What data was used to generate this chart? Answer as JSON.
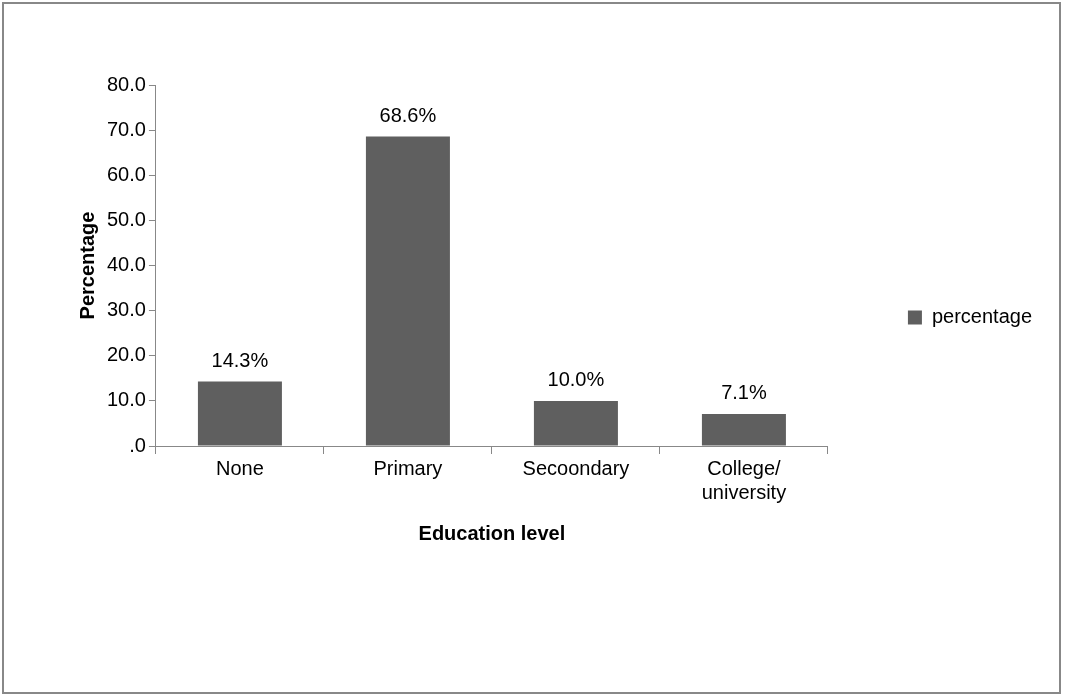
{
  "chart_data": {
    "type": "bar",
    "xlabel": "Education level",
    "ylabel": "Percentage",
    "categories": [
      "None",
      "Primary",
      "Secoondary",
      "College/university"
    ],
    "series": [
      {
        "name": "percentage",
        "color": "#5f5f5f",
        "values": [
          14.3,
          68.6,
          10.0,
          7.1
        ],
        "value_labels": [
          "14.3%",
          "68.6%",
          "10.0%",
          "7.1%"
        ]
      }
    ],
    "ylim": [
      0,
      80
    ],
    "yticks": [
      {
        "value": 0,
        "label": ".0"
      },
      {
        "value": 10,
        "label": "10.0"
      },
      {
        "value": 20,
        "label": "20.0"
      },
      {
        "value": 30,
        "label": "30.0"
      },
      {
        "value": 40,
        "label": "40.0"
      },
      {
        "value": 50,
        "label": "50.0"
      },
      {
        "value": 60,
        "label": "60.0"
      },
      {
        "value": 70,
        "label": "70.0"
      },
      {
        "value": 80,
        "label": "80.0"
      }
    ],
    "grid": false,
    "legend": "right"
  }
}
